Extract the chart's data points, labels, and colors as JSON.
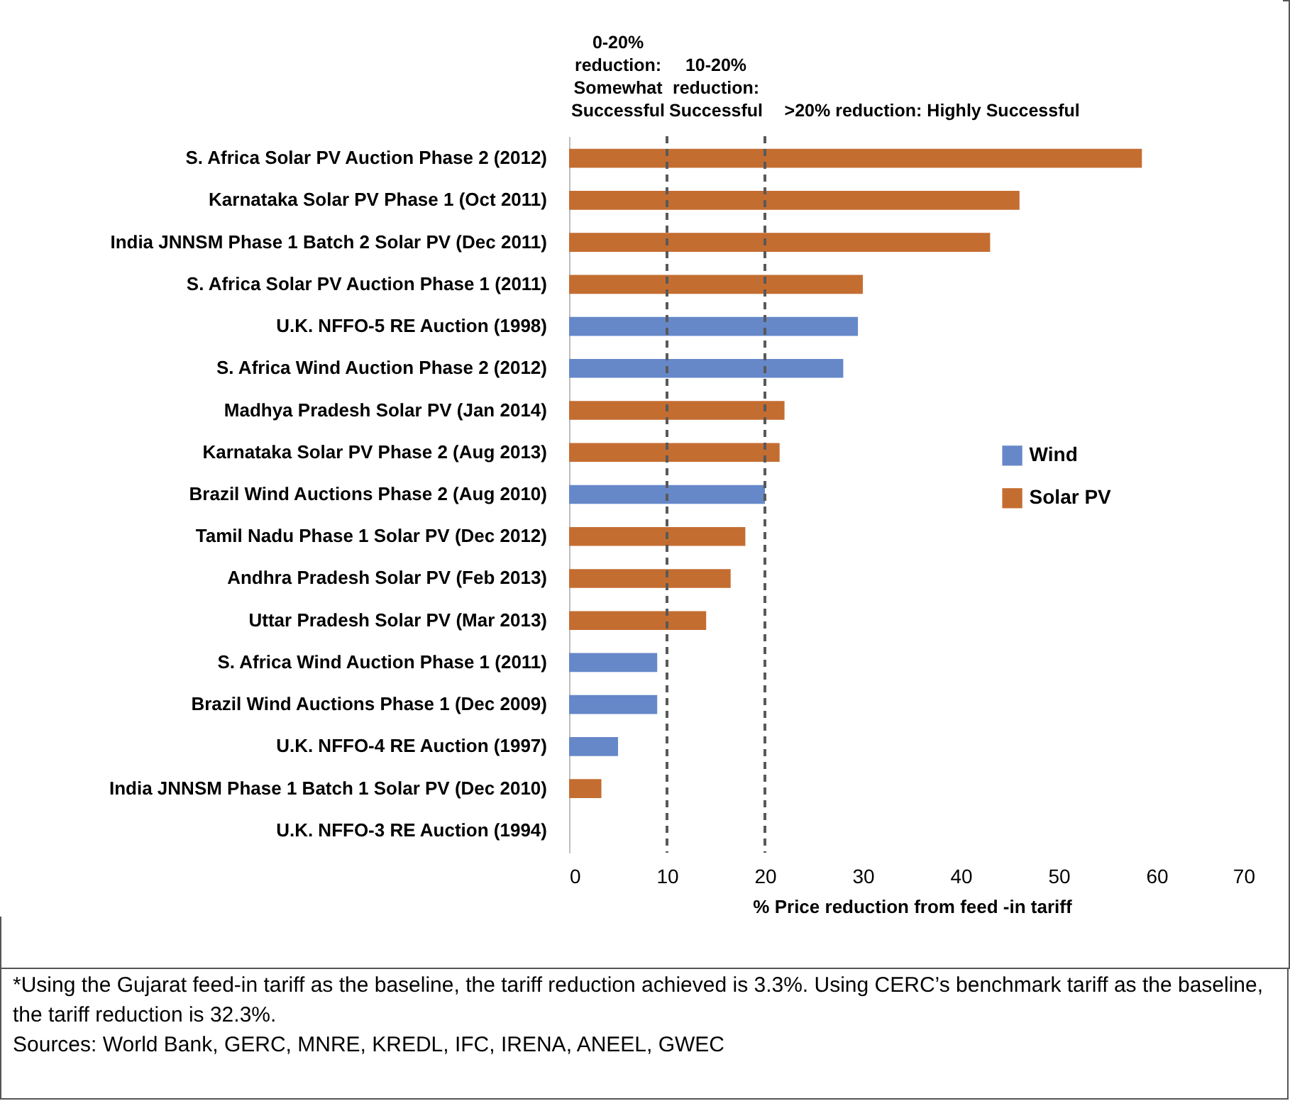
{
  "chart_data": {
    "type": "bar",
    "orientation": "horizontal",
    "stacked": true,
    "xlabel": "% Price reduction from feed -in tariff",
    "categories": [
      "S. Africa Solar PV Auction Phase 2 (2012)",
      "Karnataka Solar PV Phase 1 (Oct 2011)",
      "India JNNSM Phase 1 Batch 2 Solar PV (Dec 2011)",
      "S. Africa Solar PV Auction Phase 1 (2011)",
      "U.K. NFFO-5 RE Auction (1998)",
      "S. Africa Wind Auction Phase 2 (2012)",
      "Madhya Pradesh Solar PV (Jan 2014)",
      "Karnataka Solar PV Phase 2 (Aug 2013)",
      "Brazil Wind Auctions Phase 2 (Aug 2010)",
      "Tamil Nadu Phase 1 Solar PV (Dec 2012)",
      "Andhra Pradesh Solar PV (Feb 2013)",
      "Uttar Pradesh Solar PV (Mar 2013)",
      "S. Africa Wind Auction Phase 1 (2011)",
      "Brazil Wind Auctions Phase 1 (Dec 2009)",
      "U.K. NFFO-4 RE Auction (1997)",
      "India JNNSM Phase 1 Batch 1 Solar PV (Dec 2010)",
      "U.K. NFFO-3 RE Auction (1994)"
    ],
    "series": [
      {
        "name": "Wind",
        "color": "#6688c9",
        "values": [
          null,
          null,
          null,
          null,
          29.5,
          28,
          null,
          null,
          20,
          null,
          null,
          null,
          9,
          9,
          5,
          null,
          0
        ]
      },
      {
        "name": "Solar PV",
        "color": "#c46d31",
        "values": [
          58.5,
          46,
          43,
          30,
          null,
          null,
          22,
          21.5,
          null,
          18,
          16.5,
          14,
          null,
          null,
          null,
          3.3,
          null
        ]
      }
    ],
    "xlim": [
      0,
      70
    ],
    "xticks": [
      0,
      10,
      20,
      30,
      40,
      50,
      60,
      70
    ],
    "legend": "right",
    "ref_lines": [
      {
        "axis": "x",
        "value": 10,
        "color": "#595959",
        "line_style": "dashed"
      },
      {
        "axis": "x",
        "value": 20,
        "color": "#595959",
        "line_style": "dashed"
      }
    ],
    "annotations": [
      "0-20% reduction: Somewhat Successful",
      "10-20% reduction: Successful",
      ">20% reduction: Highly Successful",
      "*Using the Gujarat feed-in tariff as the baseline, the tariff reduction achieved is 3.3%. Using CERC’s benchmark tariff as the baseline, the tariff reduction is 32.3%.",
      "Sources: World Bank, GERC, MNRE, KREDL, IFC, IRENA, ANEEL, GWEC"
    ]
  }
}
